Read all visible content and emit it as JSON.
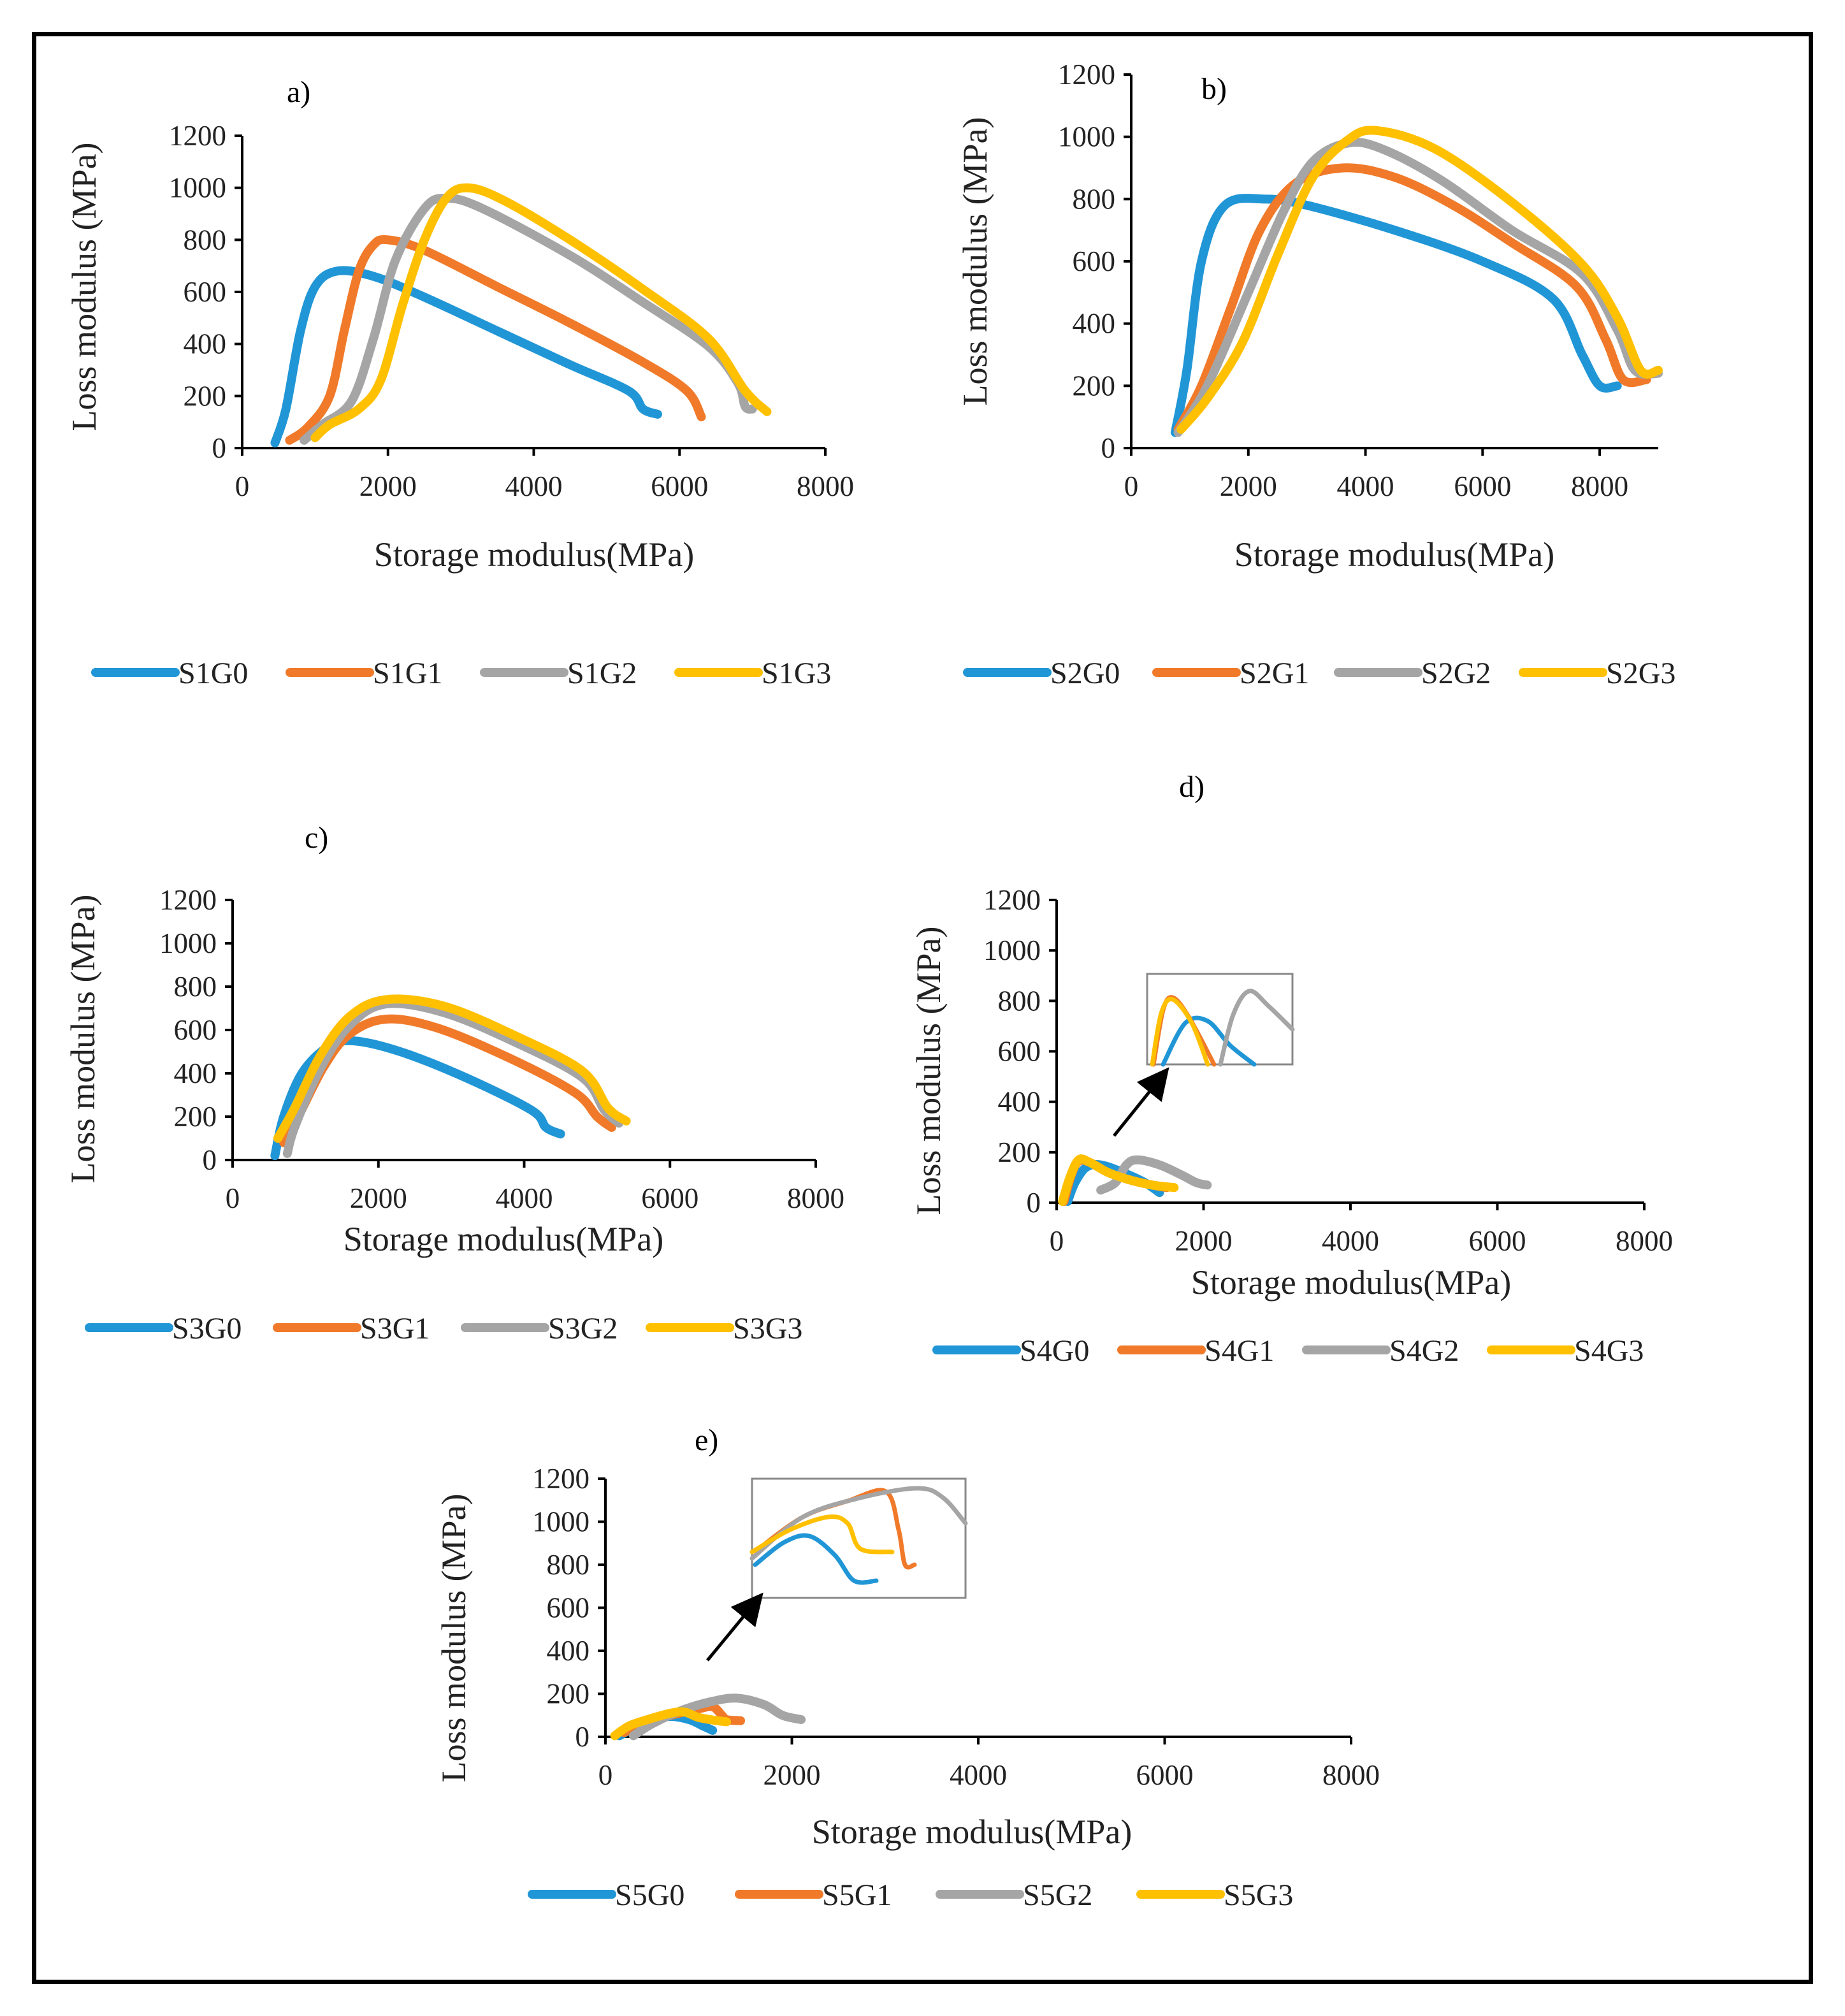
{
  "colors": {
    "blue": "#2196d6",
    "orange": "#f07a2a",
    "gray": "#a5a5a5",
    "yellow": "#ffc000"
  },
  "chart_data": [
    {
      "type": "line",
      "panel_label": "a)",
      "xlabel": "Storage modulus(MPa)",
      "ylabel": "Loss modulus (MPa)",
      "xlim": [
        0,
        8000
      ],
      "ylim": [
        0,
        1200
      ],
      "xticks": [
        "0",
        "2000",
        "4000",
        "6000",
        "8000"
      ],
      "yticks": [
        "0",
        "200",
        "400",
        "600",
        "800",
        "1000",
        "1200"
      ],
      "series": [
        {
          "name": "S1G0",
          "color": "blue",
          "points": [
            [
              450,
              20
            ],
            [
              600,
              150
            ],
            [
              800,
              450
            ],
            [
              1000,
              620
            ],
            [
              1300,
              680
            ],
            [
              1800,
              660
            ],
            [
              2500,
              580
            ],
            [
              3500,
              450
            ],
            [
              4500,
              320
            ],
            [
              5300,
              220
            ],
            [
              5500,
              150
            ],
            [
              5700,
              130
            ]
          ]
        },
        {
          "name": "S1G1",
          "color": "orange",
          "points": [
            [
              650,
              30
            ],
            [
              900,
              80
            ],
            [
              1200,
              200
            ],
            [
              1400,
              450
            ],
            [
              1600,
              680
            ],
            [
              1800,
              780
            ],
            [
              2000,
              800
            ],
            [
              2500,
              760
            ],
            [
              3500,
              620
            ],
            [
              4500,
              480
            ],
            [
              5500,
              330
            ],
            [
              6100,
              220
            ],
            [
              6300,
              120
            ]
          ]
        },
        {
          "name": "S1G2",
          "color": "gray",
          "points": [
            [
              850,
              30
            ],
            [
              1100,
              90
            ],
            [
              1500,
              180
            ],
            [
              1800,
              420
            ],
            [
              2100,
              720
            ],
            [
              2500,
              920
            ],
            [
              2800,
              960
            ],
            [
              3300,
              920
            ],
            [
              4500,
              740
            ],
            [
              5500,
              560
            ],
            [
              6400,
              390
            ],
            [
              6800,
              250
            ],
            [
              6900,
              160
            ],
            [
              7000,
              150
            ]
          ]
        },
        {
          "name": "S1G3",
          "color": "yellow",
          "points": [
            [
              1000,
              40
            ],
            [
              1200,
              90
            ],
            [
              1600,
              150
            ],
            [
              1900,
              260
            ],
            [
              2200,
              550
            ],
            [
              2500,
              800
            ],
            [
              2800,
              960
            ],
            [
              3100,
              1000
            ],
            [
              3600,
              950
            ],
            [
              4500,
              800
            ],
            [
              5500,
              610
            ],
            [
              6400,
              420
            ],
            [
              6900,
              220
            ],
            [
              7200,
              140
            ]
          ]
        }
      ]
    },
    {
      "type": "line",
      "panel_label": "b)",
      "xlabel": "Storage modulus(MPa)",
      "ylabel": "Loss modulus (MPa)",
      "xlim": [
        0,
        9000
      ],
      "ylim": [
        0,
        1200
      ],
      "xticks": [
        "0",
        "2000",
        "4000",
        "6000",
        "8000"
      ],
      "yticks": [
        "0",
        "200",
        "400",
        "600",
        "800",
        "1000",
        "1200"
      ],
      "series": [
        {
          "name": "S2G0",
          "color": "blue",
          "points": [
            [
              750,
              50
            ],
            [
              950,
              250
            ],
            [
              1200,
              600
            ],
            [
              1600,
              780
            ],
            [
              2300,
              800
            ],
            [
              3000,
              780
            ],
            [
              4500,
              700
            ],
            [
              6000,
              600
            ],
            [
              7200,
              480
            ],
            [
              7700,
              300
            ],
            [
              8000,
              200
            ],
            [
              8300,
              200
            ]
          ]
        },
        {
          "name": "S2G1",
          "color": "orange",
          "points": [
            [
              800,
              60
            ],
            [
              1200,
              200
            ],
            [
              1700,
              450
            ],
            [
              2200,
              700
            ],
            [
              2800,
              850
            ],
            [
              3600,
              900
            ],
            [
              4500,
              870
            ],
            [
              5500,
              780
            ],
            [
              6500,
              660
            ],
            [
              7600,
              520
            ],
            [
              8100,
              350
            ],
            [
              8400,
              220
            ],
            [
              8800,
              220
            ]
          ]
        },
        {
          "name": "S2G2",
          "color": "gray",
          "points": [
            [
              800,
              50
            ],
            [
              1300,
              200
            ],
            [
              2000,
              500
            ],
            [
              2600,
              760
            ],
            [
              3100,
              920
            ],
            [
              3700,
              980
            ],
            [
              4300,
              960
            ],
            [
              5300,
              860
            ],
            [
              6500,
              700
            ],
            [
              7700,
              560
            ],
            [
              8300,
              380
            ],
            [
              8600,
              250
            ],
            [
              9000,
              240
            ]
          ]
        },
        {
          "name": "S2G3",
          "color": "yellow",
          "points": [
            [
              850,
              60
            ],
            [
              1300,
              160
            ],
            [
              1900,
              340
            ],
            [
              2500,
              620
            ],
            [
              3100,
              870
            ],
            [
              3700,
              990
            ],
            [
              4200,
              1020
            ],
            [
              5200,
              960
            ],
            [
              6500,
              790
            ],
            [
              7700,
              590
            ],
            [
              8300,
              420
            ],
            [
              8700,
              250
            ],
            [
              9000,
              250
            ]
          ]
        }
      ]
    },
    {
      "type": "line",
      "panel_label": "c)",
      "xlabel": "Storage modulus(MPa)",
      "ylabel": "Loss modulus (MPa)",
      "xlim": [
        0,
        8000
      ],
      "ylim": [
        0,
        1200
      ],
      "xticks": [
        "0",
        "2000",
        "4000",
        "6000",
        "8000"
      ],
      "yticks": [
        "0",
        "200",
        "400",
        "600",
        "800",
        "1000",
        "1200"
      ],
      "series": [
        {
          "name": "S3G0",
          "color": "blue",
          "points": [
            [
              580,
              20
            ],
            [
              700,
              200
            ],
            [
              950,
              400
            ],
            [
              1300,
              520
            ],
            [
              1650,
              550
            ],
            [
              2300,
              500
            ],
            [
              3200,
              380
            ],
            [
              4100,
              230
            ],
            [
              4300,
              150
            ],
            [
              4500,
              120
            ]
          ]
        },
        {
          "name": "S3G1",
          "color": "orange",
          "points": [
            [
              700,
              80
            ],
            [
              900,
              200
            ],
            [
              1250,
              430
            ],
            [
              1600,
              580
            ],
            [
              2100,
              650
            ],
            [
              2800,
              610
            ],
            [
              3800,
              470
            ],
            [
              4700,
              310
            ],
            [
              5000,
              200
            ],
            [
              5200,
              150
            ]
          ]
        },
        {
          "name": "S3G2",
          "color": "gray",
          "points": [
            [
              750,
              30
            ],
            [
              850,
              150
            ],
            [
              1200,
              420
            ],
            [
              1600,
              620
            ],
            [
              2100,
              720
            ],
            [
              2900,
              680
            ],
            [
              3900,
              540
            ],
            [
              4800,
              380
            ],
            [
              5100,
              230
            ],
            [
              5300,
              170
            ]
          ]
        },
        {
          "name": "S3G3",
          "color": "yellow",
          "points": [
            [
              620,
              100
            ],
            [
              850,
              240
            ],
            [
              1200,
              480
            ],
            [
              1600,
              660
            ],
            [
              2100,
              740
            ],
            [
              2900,
              710
            ],
            [
              3900,
              570
            ],
            [
              4800,
              410
            ],
            [
              5150,
              240
            ],
            [
              5400,
              180
            ]
          ]
        }
      ]
    },
    {
      "type": "line",
      "panel_label": "d)",
      "xlabel": "Storage modulus(MPa)",
      "ylabel": "Loss modulus (MPa)",
      "xlim": [
        0,
        8000
      ],
      "ylim": [
        0,
        1200
      ],
      "xticks": [
        "0",
        "2000",
        "4000",
        "6000",
        "8000"
      ],
      "yticks": [
        "0",
        "200",
        "400",
        "600",
        "800",
        "1000",
        "1200"
      ],
      "series": [
        {
          "name": "S4G0",
          "color": "blue",
          "points": [
            [
              150,
              5
            ],
            [
              250,
              80
            ],
            [
              400,
              140
            ],
            [
              600,
              150
            ],
            [
              900,
              120
            ],
            [
              1200,
              80
            ],
            [
              1400,
              40
            ]
          ]
        },
        {
          "name": "S4G1",
          "color": "orange",
          "points": [
            [
              100,
              5
            ],
            [
              200,
              110
            ],
            [
              300,
              165
            ],
            [
              450,
              160
            ],
            [
              700,
              120
            ],
            [
              1000,
              90
            ],
            [
              1300,
              70
            ],
            [
              1500,
              60
            ]
          ]
        },
        {
          "name": "S4G2",
          "color": "gray",
          "points": [
            [
              600,
              50
            ],
            [
              800,
              80
            ],
            [
              950,
              150
            ],
            [
              1100,
              170
            ],
            [
              1400,
              150
            ],
            [
              1700,
              110
            ],
            [
              1900,
              80
            ],
            [
              2050,
              70
            ]
          ]
        },
        {
          "name": "S4G3",
          "color": "yellow",
          "points": [
            [
              80,
              5
            ],
            [
              180,
              100
            ],
            [
              300,
              170
            ],
            [
              450,
              160
            ],
            [
              700,
              120
            ],
            [
              1000,
              90
            ],
            [
              1300,
              70
            ],
            [
              1600,
              60
            ]
          ]
        }
      ]
    },
    {
      "type": "line",
      "panel_label": "e)",
      "xlabel": "Storage modulus(MPa)",
      "ylabel": "Loss modulus (MPa)",
      "xlim": [
        0,
        8000
      ],
      "ylim": [
        0,
        1200
      ],
      "xticks": [
        "0",
        "2000",
        "4000",
        "6000",
        "8000"
      ],
      "yticks": [
        "0",
        "200",
        "400",
        "600",
        "800",
        "1000",
        "1200"
      ],
      "series": [
        {
          "name": "S5G0",
          "color": "blue",
          "points": [
            [
              150,
              5
            ],
            [
              300,
              40
            ],
            [
              500,
              80
            ],
            [
              700,
              95
            ],
            [
              900,
              80
            ],
            [
              1050,
              50
            ],
            [
              1150,
              30
            ]
          ]
        },
        {
          "name": "S5G1",
          "color": "orange",
          "points": [
            [
              200,
              20
            ],
            [
              400,
              60
            ],
            [
              700,
              100
            ],
            [
              1000,
              130
            ],
            [
              1150,
              140
            ],
            [
              1250,
              100
            ],
            [
              1300,
              80
            ],
            [
              1450,
              75
            ]
          ]
        },
        {
          "name": "S5G2",
          "color": "gray",
          "points": [
            [
              300,
              5
            ],
            [
              500,
              60
            ],
            [
              800,
              120
            ],
            [
              1100,
              160
            ],
            [
              1400,
              180
            ],
            [
              1700,
              150
            ],
            [
              1900,
              100
            ],
            [
              2100,
              80
            ]
          ]
        },
        {
          "name": "S5G3",
          "color": "yellow",
          "points": [
            [
              100,
              5
            ],
            [
              250,
              50
            ],
            [
              450,
              80
            ],
            [
              700,
              110
            ],
            [
              850,
              115
            ],
            [
              1000,
              90
            ],
            [
              1200,
              75
            ],
            [
              1300,
              70
            ]
          ]
        }
      ]
    }
  ]
}
